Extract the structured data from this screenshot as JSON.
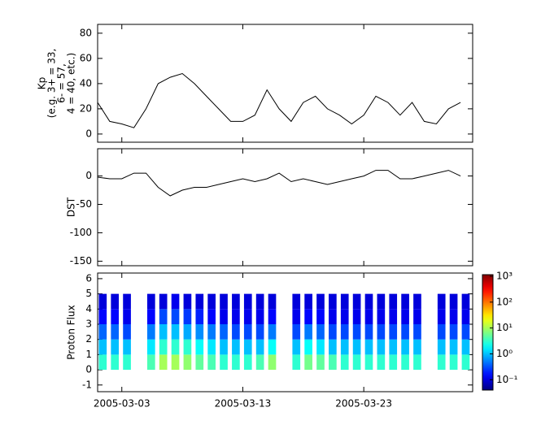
{
  "chart_data": [
    {
      "type": "line",
      "ylabel": [
        "Kp",
        "(e.g. 3+ = 33,",
        "6- = 57,",
        "4 = 40, etc.)"
      ],
      "color": "#000000",
      "x": [
        "2005-03-01",
        "2005-03-02",
        "2005-03-03",
        "2005-03-04",
        "2005-03-05",
        "2005-03-06",
        "2005-03-07",
        "2005-03-08",
        "2005-03-09",
        "2005-03-10",
        "2005-03-11",
        "2005-03-12",
        "2005-03-13",
        "2005-03-14",
        "2005-03-15",
        "2005-03-16",
        "2005-03-17",
        "2005-03-18",
        "2005-03-19",
        "2005-03-20",
        "2005-03-21",
        "2005-03-22",
        "2005-03-23",
        "2005-03-24",
        "2005-03-25",
        "2005-03-26",
        "2005-03-27",
        "2005-03-28",
        "2005-03-29",
        "2005-03-30",
        "2005-03-31"
      ],
      "values": [
        25,
        10,
        8,
        5,
        20,
        40,
        45,
        48,
        40,
        30,
        20,
        10,
        10,
        15,
        35,
        20,
        10,
        25,
        30,
        20,
        15,
        8,
        15,
        30,
        25,
        15,
        25,
        10,
        8,
        20,
        25
      ],
      "xlim": [
        "2005-03-01",
        "2005-04-01"
      ],
      "ylim": [
        -6.5,
        87
      ],
      "yticks": [
        0,
        20,
        40,
        60,
        80
      ]
    },
    {
      "type": "line",
      "ylabel": [
        "DST"
      ],
      "color": "#000000",
      "x": [
        "2005-03-01",
        "2005-03-02",
        "2005-03-03",
        "2005-03-04",
        "2005-03-05",
        "2005-03-06",
        "2005-03-07",
        "2005-03-08",
        "2005-03-09",
        "2005-03-10",
        "2005-03-11",
        "2005-03-12",
        "2005-03-13",
        "2005-03-14",
        "2005-03-15",
        "2005-03-16",
        "2005-03-17",
        "2005-03-18",
        "2005-03-19",
        "2005-03-20",
        "2005-03-21",
        "2005-03-22",
        "2005-03-23",
        "2005-03-24",
        "2005-03-25",
        "2005-03-26",
        "2005-03-27",
        "2005-03-28",
        "2005-03-29",
        "2005-03-30",
        "2005-03-31"
      ],
      "values": [
        -2,
        -5,
        -5,
        5,
        5,
        -20,
        -35,
        -25,
        -20,
        -20,
        -15,
        -10,
        -5,
        -10,
        -5,
        5,
        -10,
        -5,
        -10,
        -15,
        -10,
        -5,
        0,
        10,
        10,
        -5,
        -5,
        0,
        5,
        10,
        0
      ],
      "xlim": [
        "2005-03-01",
        "2005-04-01"
      ],
      "ylim": [
        -158,
        48
      ],
      "yticks": [
        0,
        -50,
        -100,
        -150
      ]
    },
    {
      "type": "heatmap",
      "ylabel": [
        "Proton Flux"
      ],
      "x": [
        "2005-03-01",
        "2005-03-02",
        "2005-03-03",
        "2005-03-04",
        "2005-03-05",
        "2005-03-06",
        "2005-03-07",
        "2005-03-08",
        "2005-03-09",
        "2005-03-10",
        "2005-03-11",
        "2005-03-12",
        "2005-03-13",
        "2005-03-14",
        "2005-03-15",
        "2005-03-16",
        "2005-03-17",
        "2005-03-18",
        "2005-03-19",
        "2005-03-20",
        "2005-03-21",
        "2005-03-22",
        "2005-03-23",
        "2005-03-24",
        "2005-03-25",
        "2005-03-26",
        "2005-03-27",
        "2005-03-28",
        "2005-03-29",
        "2005-03-30",
        "2005-03-31"
      ],
      "y_bins": [
        0,
        1,
        2,
        3,
        4,
        5
      ],
      "values": [
        [
          3,
          1,
          0.4,
          0.15,
          0.1
        ],
        [
          3,
          1,
          0.4,
          0.15,
          0.1
        ],
        [
          3,
          1,
          0.3,
          0.12,
          0.1
        ],
        null,
        [
          4,
          1.5,
          0.5,
          0.15,
          0.1
        ],
        [
          10,
          3,
          1,
          0.3,
          0.1
        ],
        [
          10,
          3,
          1,
          0.3,
          0.12
        ],
        [
          8,
          3,
          0.8,
          0.25,
          0.1
        ],
        [
          5,
          2,
          0.6,
          0.2,
          0.1
        ],
        [
          4,
          1.5,
          0.5,
          0.15,
          0.1
        ],
        [
          3,
          1,
          0.4,
          0.12,
          0.1
        ],
        [
          3,
          1,
          0.3,
          0.12,
          0.1
        ],
        [
          3,
          1,
          0.3,
          0.12,
          0.1
        ],
        [
          4,
          1,
          0.3,
          0.12,
          0.1
        ],
        [
          8,
          2,
          0.5,
          0.15,
          0.1
        ],
        null,
        [
          3,
          1,
          0.3,
          0.12,
          0.1
        ],
        [
          6,
          2,
          0.5,
          0.15,
          0.1
        ],
        [
          5,
          1.5,
          0.4,
          0.15,
          0.1
        ],
        [
          4,
          1,
          0.3,
          0.12,
          0.1
        ],
        [
          3,
          1,
          0.3,
          0.12,
          0.1
        ],
        [
          3,
          1,
          0.3,
          0.12,
          0.1
        ],
        [
          3,
          1,
          0.3,
          0.12,
          0.1
        ],
        [
          3,
          1,
          0.3,
          0.12,
          0.1
        ],
        [
          3,
          1,
          0.3,
          0.12,
          0.1
        ],
        [
          3,
          1,
          0.3,
          0.12,
          0.1
        ],
        [
          3,
          1,
          0.3,
          0.12,
          0.1
        ],
        null,
        [
          3,
          1,
          0.3,
          0.12,
          0.1
        ],
        [
          3,
          1,
          0.3,
          0.12,
          0.1
        ],
        [
          3,
          1,
          0.3,
          0.12,
          0.1
        ]
      ],
      "xlim": [
        "2005-03-01",
        "2005-04-01"
      ],
      "ylim": [
        -1.44,
        6.37
      ],
      "yticks": [
        -1,
        0,
        1,
        2,
        3,
        4,
        5,
        6
      ],
      "xticks": [
        "2005-03-03",
        "2005-03-13",
        "2005-03-23"
      ],
      "colorbar": {
        "log": true,
        "clim": [
          0.04,
          1150
        ],
        "colormap": "jet",
        "ticks": [
          {
            "value": 0.1,
            "label": "10⁻¹"
          },
          {
            "value": 1,
            "label": "10⁰"
          },
          {
            "value": 10,
            "label": "10¹"
          },
          {
            "value": 100,
            "label": "10²"
          },
          {
            "value": 1000,
            "label": "10³"
          }
        ]
      }
    }
  ]
}
